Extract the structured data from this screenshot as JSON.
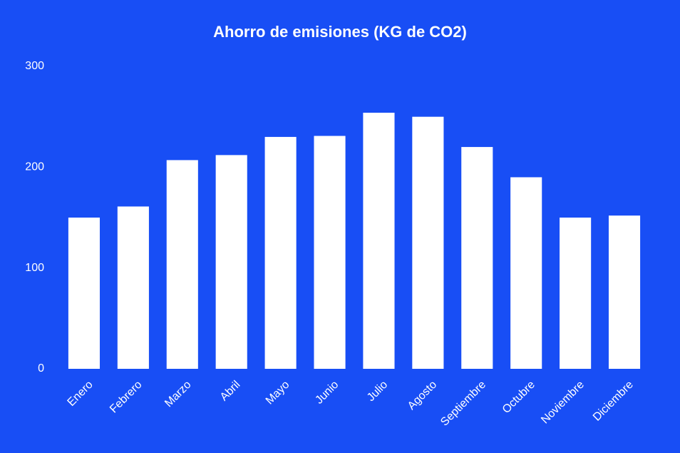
{
  "chart_data": {
    "type": "bar",
    "title": "Ahorro de emisiones (KG de CO2)",
    "categories": [
      "Enero",
      "Febrero",
      "Marzo",
      "Abril",
      "Mayo",
      "Junio",
      "Julio",
      "Agosto",
      "Septiembre",
      "Octubre",
      "Noviembre",
      "Diciembre"
    ],
    "values": [
      150,
      161,
      207,
      212,
      230,
      231,
      254,
      250,
      220,
      190,
      150,
      152
    ],
    "color": "#ffffff",
    "ylim": [
      0,
      300
    ],
    "yticks": [
      0,
      100,
      200,
      300
    ],
    "grid": false
  }
}
